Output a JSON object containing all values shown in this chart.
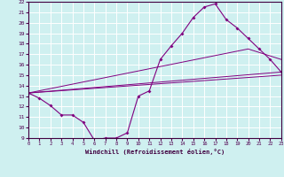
{
  "xlabel": "Windchill (Refroidissement éolien,°C)",
  "xlim": [
    0,
    23
  ],
  "ylim": [
    9,
    22
  ],
  "yticks": [
    9,
    10,
    11,
    12,
    13,
    14,
    15,
    16,
    17,
    18,
    19,
    20,
    21,
    22
  ],
  "xticks": [
    0,
    1,
    2,
    3,
    4,
    5,
    6,
    7,
    8,
    9,
    10,
    11,
    12,
    13,
    14,
    15,
    16,
    17,
    18,
    19,
    20,
    21,
    22,
    23
  ],
  "background_color": "#cff0f0",
  "line_color": "#800080",
  "grid_color": "#ffffff",
  "line1_x": [
    0,
    1,
    2,
    3,
    4,
    5,
    6,
    7,
    8,
    9,
    10,
    11,
    12,
    13,
    14,
    15,
    16,
    17,
    18,
    19,
    20,
    21,
    22,
    23
  ],
  "line1_y": [
    13.3,
    12.8,
    12.1,
    11.2,
    11.2,
    10.5,
    8.8,
    9.0,
    9.0,
    9.5,
    13.0,
    13.5,
    16.5,
    17.8,
    19.0,
    20.5,
    21.5,
    21.8,
    20.3,
    19.5,
    18.5,
    17.5,
    16.5,
    15.3
  ],
  "line2_x": [
    0,
    23
  ],
  "line2_y": [
    13.3,
    15.3
  ],
  "line3_x": [
    0,
    23
  ],
  "line3_y": [
    13.3,
    15.0
  ],
  "line4_x": [
    0,
    20,
    23
  ],
  "line4_y": [
    13.3,
    17.5,
    16.5
  ]
}
